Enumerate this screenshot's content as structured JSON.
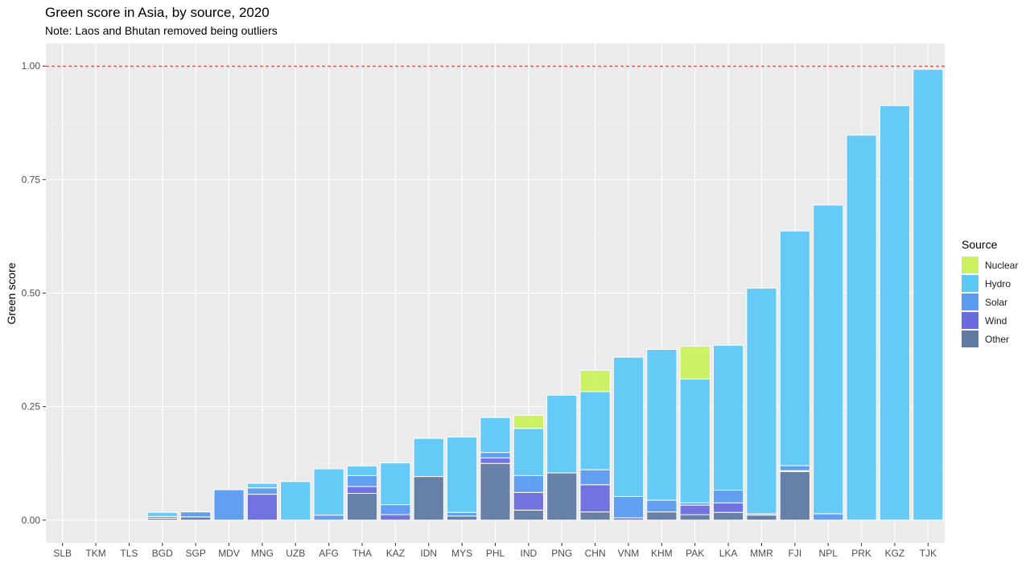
{
  "chart_data": {
    "type": "bar",
    "stacked": true,
    "title": "Green score in Asia, by source, 2020",
    "subtitle": "Note: Laos and Bhutan removed being outliers",
    "xlabel": "",
    "ylabel": "Green score",
    "ylim": [
      -0.05,
      1.05
    ],
    "yticks": [
      "0.00",
      "0.25",
      "0.50",
      "0.75",
      "1.00"
    ],
    "reference_line": {
      "y": 1.0,
      "color": "#e41a1c",
      "style": "dashed"
    },
    "grid": true,
    "legend_position": "right",
    "legend_title": "Source",
    "categories": [
      "SLB",
      "TKM",
      "TLS",
      "BGD",
      "SGP",
      "MDV",
      "MNG",
      "UZB",
      "AFG",
      "THA",
      "KAZ",
      "IDN",
      "MYS",
      "PHL",
      "IND",
      "PNG",
      "CHN",
      "VNM",
      "KHM",
      "PAK",
      "LKA",
      "MMR",
      "FJI",
      "NPL",
      "PRK",
      "KGZ",
      "TJK"
    ],
    "series": [
      {
        "name": "Other",
        "color": "#5f7aa3",
        "values": [
          0,
          0,
          0,
          0.004,
          0.007,
          0,
          0,
          0,
          0,
          0.059,
          0,
          0.096,
          0.009,
          0.125,
          0.022,
          0.104,
          0.018,
          0,
          0.018,
          0.012,
          0.017,
          0.011,
          0.107,
          0,
          0,
          0,
          0
        ]
      },
      {
        "name": "Wind",
        "color": "#6b6be0",
        "values": [
          0,
          0,
          0,
          0,
          0,
          0,
          0.057,
          0,
          0,
          0.015,
          0.012,
          0,
          0,
          0.012,
          0.039,
          0,
          0.06,
          0.005,
          0,
          0.021,
          0.021,
          0,
          0.002,
          0,
          0,
          0,
          0
        ]
      },
      {
        "name": "Solar",
        "color": "#5b9bf0",
        "values": [
          0,
          0,
          0,
          0.004,
          0.011,
          0.067,
          0.014,
          0,
          0.011,
          0.024,
          0.022,
          0,
          0.008,
          0.012,
          0.037,
          0,
          0.033,
          0.047,
          0.026,
          0.005,
          0.028,
          0.003,
          0.011,
          0.014,
          0,
          0,
          0
        ]
      },
      {
        "name": "Hydro",
        "color": "#5ec8f5",
        "values": [
          0,
          0,
          0,
          0.009,
          0,
          0,
          0.01,
          0.085,
          0.102,
          0.021,
          0.092,
          0.084,
          0.166,
          0.077,
          0.104,
          0.171,
          0.172,
          0.307,
          0.332,
          0.273,
          0.319,
          0.497,
          0.517,
          0.68,
          0.848,
          0.913,
          0.993
        ]
      },
      {
        "name": "Nuclear",
        "color": "#cbf15e",
        "values": [
          0,
          0,
          0,
          0,
          0,
          0,
          0,
          0,
          0,
          0,
          0,
          0,
          0,
          0,
          0.029,
          0,
          0.047,
          0,
          0,
          0.072,
          0,
          0,
          0,
          0,
          0,
          0,
          0
        ]
      }
    ]
  }
}
